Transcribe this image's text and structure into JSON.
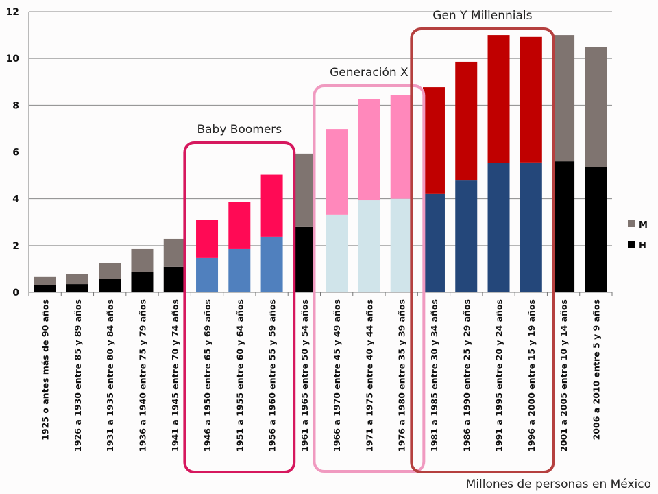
{
  "chart_data": {
    "type": "bar",
    "stacked": true,
    "title": "",
    "xlabel": "",
    "ylabel": "",
    "ylim": [
      0,
      12
    ],
    "yticks": [
      0,
      2,
      4,
      6,
      8,
      10,
      12
    ],
    "grid": "horizontal",
    "legend": "right",
    "categories": [
      "1925 o antes más de 90 años",
      "1926 a 1930 entre 85 y 89 años",
      "1931 a 1935 entre 80 y 84 años",
      "1936 a 1940 entre 75 y 79 años",
      "1941 a 1945 entre 70 y 74 años",
      "1946 a 1950 entre 65 y 69 años",
      "1951 a 1955 entre 60 y 64 años",
      "1956 a 1960 entre 55 y 59 años",
      "1961 a 1965 entre 50 y 54 años",
      "1966 a 1970 entre 45 y 49 años",
      "1971 a 1975 entre 40 y 44 años",
      "1976 a 1980 entre 35 y 39 años",
      "1981 a 1985 entre 30 y 34 años",
      "1986 a 1990 entre 25 y 29 años",
      "1991 a 1995 entre 20 y 24 años",
      "1996 a 2000 entre 15 y 19 años",
      "2001 a 2005 entre 10 y 14 años",
      "2006 a 2010 entre 5 y 9 años"
    ],
    "series": [
      {
        "name": "H",
        "values": [
          0.32,
          0.35,
          0.56,
          0.87,
          1.09,
          1.47,
          1.85,
          2.38,
          2.79,
          3.32,
          3.93,
          4.0,
          4.2,
          4.78,
          5.52,
          5.55,
          5.6,
          5.34
        ]
      },
      {
        "name": "M",
        "values": [
          0.36,
          0.44,
          0.68,
          0.98,
          1.2,
          1.62,
          2.0,
          2.65,
          3.14,
          3.66,
          4.32,
          4.45,
          4.57,
          5.08,
          5.48,
          5.37,
          5.4,
          5.16
        ]
      }
    ],
    "legend_colors": {
      "H": "#000000",
      "M": "#7f7470"
    },
    "groups": [
      {
        "label": "Baby Boomers",
        "from": 5,
        "to": 7,
        "color_h": "#5080be",
        "color_m": "#ff0a55",
        "border": "#d6185e"
      },
      {
        "label": "Generación X",
        "from": 9,
        "to": 11,
        "color_h": "#d0e4ea",
        "color_m": "#ff88bb",
        "border": "#f09ac0"
      },
      {
        "label": "Gen Y Millennials",
        "from": 12,
        "to": 15,
        "color_h": "#24477a",
        "color_m": "#c00000",
        "border": "#b5403f"
      }
    ],
    "annotation": "Millones de personas en México"
  }
}
